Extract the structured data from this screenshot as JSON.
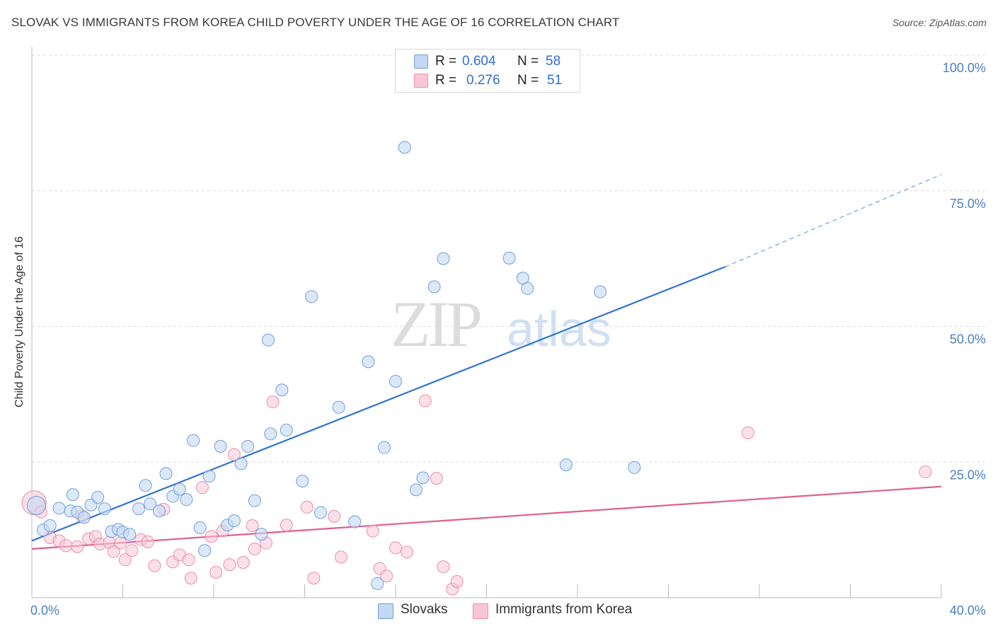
{
  "title": "SLOVAK VS IMMIGRANTS FROM KOREA CHILD POVERTY UNDER THE AGE OF 16 CORRELATION CHART",
  "source": "Source: ZipAtlas.com",
  "watermark": {
    "zip": "ZIP",
    "atlas": "atlas"
  },
  "legend": {
    "rows": [
      {
        "r_label": "R =",
        "r_value": "0.604",
        "n_label": "N =",
        "n_value": "58"
      },
      {
        "r_label": "R =",
        "r_value": "0.276",
        "n_label": "N =",
        "n_value": "51"
      }
    ]
  },
  "bottom_legend": [
    "Slovaks",
    "Immigrants from Korea"
  ],
  "colors": {
    "slovak_fill": "#c4d8f3",
    "slovak_stroke": "#6f9fd8",
    "slovak_line": "#2f74d0",
    "korea_fill": "#f8c6d6",
    "korea_stroke": "#e98fae",
    "korea_line": "#e05f8e",
    "tick_text": "#4a7fc4",
    "grid": "#dcdcdc"
  },
  "chart_data": {
    "type": "scatter",
    "title": "SLOVAK VS IMMIGRANTS FROM KOREA CHILD POVERTY UNDER THE AGE OF 16 CORRELATION CHART",
    "xlabel": "",
    "ylabel": "Child Poverty Under the Age of 16",
    "xlim": [
      0,
      40
    ],
    "ylim": [
      0,
      100
    ],
    "x_tick_labels": [
      "0.0%",
      "40.0%"
    ],
    "y_tick_labels": [
      "25.0%",
      "50.0%",
      "75.0%",
      "100.0%"
    ],
    "y_tick_values": [
      25,
      50,
      75,
      100
    ],
    "grid": true,
    "legend_position": "top-center",
    "series": [
      {
        "name": "Slovaks",
        "R": 0.604,
        "N": 58,
        "trend": {
          "x0": 0,
          "y0": 10.5,
          "x1": 30.5,
          "y1": 61,
          "dashed_to_x": 40,
          "dashed_to_y": 78
        },
        "points": [
          [
            0.2,
            17.0
          ],
          [
            0.5,
            12.5
          ],
          [
            0.8,
            13.3
          ],
          [
            1.2,
            16.5
          ],
          [
            1.7,
            16.0
          ],
          [
            1.8,
            19.0
          ],
          [
            2.0,
            15.8
          ],
          [
            2.3,
            14.8
          ],
          [
            2.6,
            17.1
          ],
          [
            2.9,
            18.5
          ],
          [
            3.2,
            16.4
          ],
          [
            3.5,
            12.2
          ],
          [
            3.8,
            12.6
          ],
          [
            4.0,
            12.1
          ],
          [
            4.3,
            11.7
          ],
          [
            4.7,
            16.4
          ],
          [
            5.0,
            20.7
          ],
          [
            5.2,
            17.3
          ],
          [
            5.6,
            16.0
          ],
          [
            5.9,
            22.9
          ],
          [
            6.2,
            18.7
          ],
          [
            6.5,
            20.0
          ],
          [
            6.8,
            18.1
          ],
          [
            7.1,
            29.0
          ],
          [
            7.4,
            12.9
          ],
          [
            7.6,
            8.7
          ],
          [
            7.8,
            22.4
          ],
          [
            8.3,
            27.9
          ],
          [
            8.6,
            13.4
          ],
          [
            8.9,
            14.2
          ],
          [
            9.2,
            24.7
          ],
          [
            9.5,
            27.9
          ],
          [
            9.8,
            17.9
          ],
          [
            10.1,
            11.7
          ],
          [
            10.5,
            30.2
          ],
          [
            11.0,
            38.3
          ],
          [
            11.2,
            30.9
          ],
          [
            11.9,
            21.5
          ],
          [
            12.3,
            55.5
          ],
          [
            12.7,
            15.7
          ],
          [
            13.5,
            35.1
          ],
          [
            14.2,
            14.0
          ],
          [
            14.8,
            43.5
          ],
          [
            15.2,
            2.6
          ],
          [
            15.5,
            27.7
          ],
          [
            16.0,
            39.9
          ],
          [
            16.4,
            83.0
          ],
          [
            16.9,
            19.9
          ],
          [
            17.2,
            22.1
          ],
          [
            17.7,
            57.3
          ],
          [
            18.1,
            62.5
          ],
          [
            21.0,
            62.6
          ],
          [
            21.6,
            58.9
          ],
          [
            21.8,
            57.0
          ],
          [
            23.5,
            24.5
          ],
          [
            25.0,
            56.4
          ],
          [
            26.5,
            24.0
          ],
          [
            10.4,
            47.5
          ]
        ]
      },
      {
        "name": "Immigrants from Korea",
        "R": 0.276,
        "N": 51,
        "trend": {
          "x0": 0,
          "y0": 9.0,
          "x1": 40,
          "y1": 20.5
        },
        "points": [
          [
            0.1,
            17.5
          ],
          [
            0.4,
            15.8
          ],
          [
            0.8,
            11.1
          ],
          [
            1.2,
            10.5
          ],
          [
            1.5,
            9.6
          ],
          [
            2.0,
            9.4
          ],
          [
            2.2,
            15.1
          ],
          [
            2.5,
            10.9
          ],
          [
            2.8,
            11.3
          ],
          [
            3.0,
            9.9
          ],
          [
            3.4,
            10.2
          ],
          [
            3.6,
            8.5
          ],
          [
            3.9,
            10.1
          ],
          [
            4.1,
            7.0
          ],
          [
            4.4,
            8.7
          ],
          [
            4.8,
            10.7
          ],
          [
            5.1,
            10.3
          ],
          [
            5.4,
            5.9
          ],
          [
            5.8,
            16.3
          ],
          [
            6.2,
            6.6
          ],
          [
            6.5,
            7.9
          ],
          [
            6.9,
            7.0
          ],
          [
            7.0,
            3.6
          ],
          [
            7.5,
            20.3
          ],
          [
            7.9,
            11.3
          ],
          [
            8.1,
            4.7
          ],
          [
            8.4,
            12.3
          ],
          [
            8.7,
            6.1
          ],
          [
            8.9,
            26.4
          ],
          [
            9.3,
            6.5
          ],
          [
            9.7,
            13.3
          ],
          [
            9.8,
            9.0
          ],
          [
            10.3,
            10.1
          ],
          [
            10.6,
            36.1
          ],
          [
            11.2,
            13.4
          ],
          [
            12.1,
            16.7
          ],
          [
            12.4,
            3.6
          ],
          [
            13.3,
            15.0
          ],
          [
            13.6,
            7.5
          ],
          [
            15.0,
            12.3
          ],
          [
            15.3,
            5.4
          ],
          [
            15.6,
            4.0
          ],
          [
            16.0,
            9.2
          ],
          [
            16.5,
            8.4
          ],
          [
            17.3,
            36.3
          ],
          [
            17.8,
            22.0
          ],
          [
            18.1,
            5.7
          ],
          [
            18.5,
            1.6
          ],
          [
            18.7,
            3.0
          ],
          [
            31.5,
            30.4
          ],
          [
            39.3,
            23.2
          ]
        ]
      }
    ]
  }
}
